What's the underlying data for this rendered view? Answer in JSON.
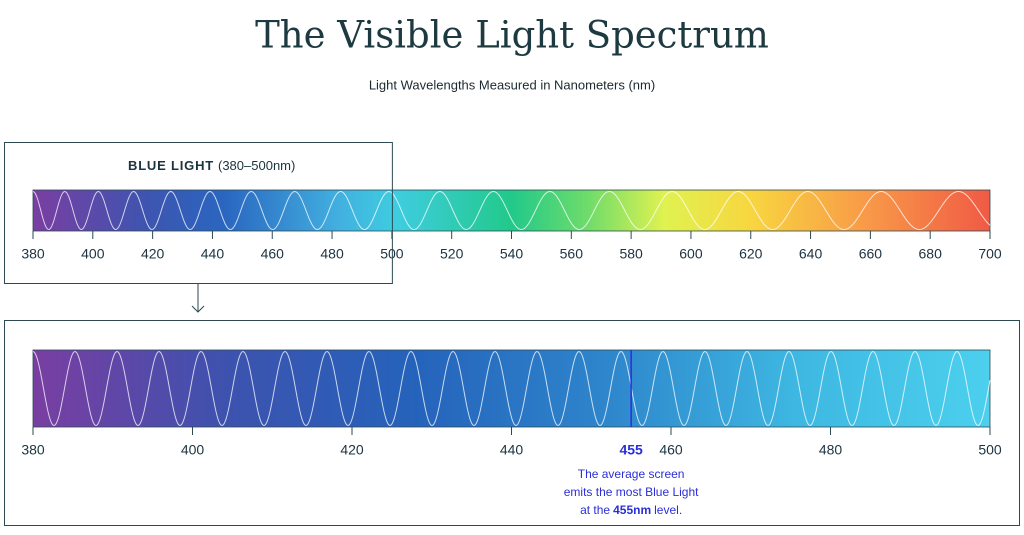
{
  "title": "The Visible Light Spectrum",
  "subtitle": "Light Wavelengths Measured in Nanometers (nm)",
  "chart_data": [
    {
      "type": "spectrum",
      "xlim": [
        380,
        700
      ],
      "xticks": [
        380,
        400,
        420,
        440,
        460,
        480,
        500,
        520,
        540,
        560,
        580,
        600,
        620,
        640,
        660,
        680,
        700
      ],
      "highlight": {
        "range": [
          380,
          500
        ],
        "label": "BLUE LIGHT",
        "sublabel": "(380–500nm)"
      }
    },
    {
      "type": "spectrum",
      "xlim": [
        380,
        500
      ],
      "xticks": [
        380,
        400,
        420,
        440,
        460,
        480,
        500
      ],
      "marker": 455,
      "marker_color": "#2a2fd8",
      "annotation": [
        "The average screen",
        "emits the most Blue Light",
        [
          "at the",
          "455nm",
          "level."
        ]
      ]
    }
  ]
}
